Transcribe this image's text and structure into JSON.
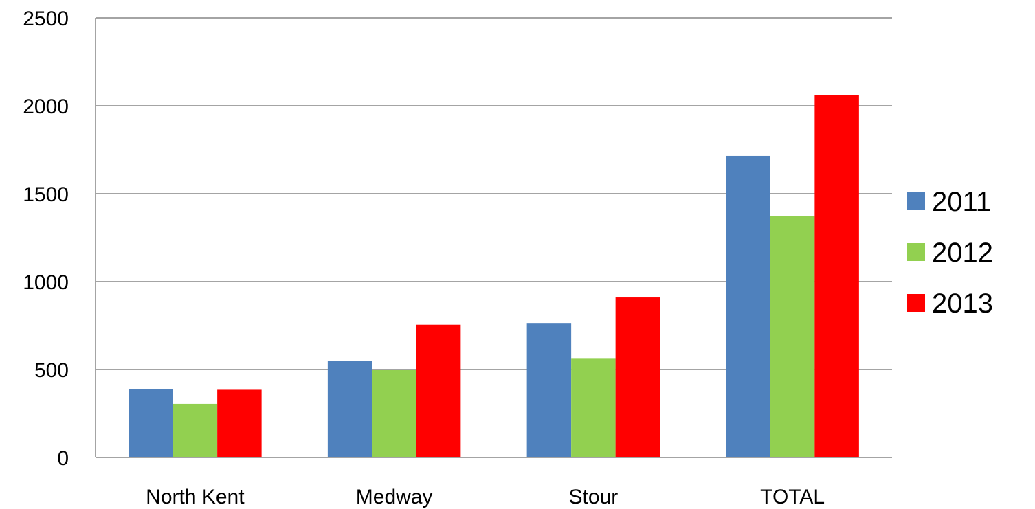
{
  "chart_data": {
    "type": "bar",
    "title": "",
    "xlabel": "",
    "ylabel": "",
    "categories": [
      "North Kent",
      "Medway",
      "Stour",
      "TOTAL"
    ],
    "series": [
      {
        "name": "2011",
        "color": "#4f81bd",
        "values": [
          390,
          550,
          765,
          1715
        ]
      },
      {
        "name": "2012",
        "color": "#92d050",
        "values": [
          305,
          500,
          565,
          1375
        ]
      },
      {
        "name": "2013",
        "color": "#ff0000",
        "values": [
          385,
          755,
          910,
          2060
        ]
      }
    ],
    "ylim": [
      0,
      2500
    ],
    "yticks": [
      "0",
      "500",
      "1000",
      "1500",
      "2000",
      "2500"
    ],
    "grid": true,
    "legend_position": "right"
  }
}
